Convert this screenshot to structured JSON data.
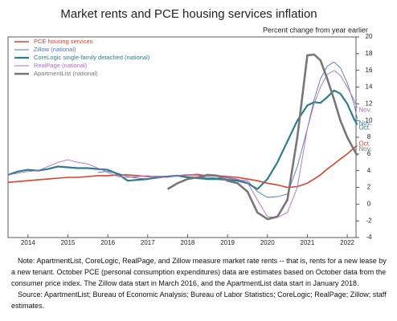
{
  "chart_data": {
    "type": "line",
    "title": "Market rents and PCE housing services inflation",
    "subtitle": "Percent change from year earlier",
    "x": [
      2014.0,
      2014.25,
      2014.5,
      2014.75,
      2015.0,
      2015.25,
      2015.5,
      2015.75,
      2016.0,
      2016.25,
      2016.5,
      2016.75,
      2017.0,
      2017.25,
      2017.5,
      2017.75,
      2018.0,
      2018.25,
      2018.5,
      2018.75,
      2019.0,
      2019.25,
      2019.5,
      2019.75,
      2020.0,
      2020.25,
      2020.5,
      2020.75,
      2021.0,
      2021.25,
      2021.5,
      2021.67,
      2021.83,
      2022.0,
      2022.17,
      2022.33,
      2022.5,
      2022.67,
      2022.75
    ],
    "series": [
      {
        "name": "PCE housing services",
        "color": "#d9442a",
        "end_label": "Oct.",
        "values": [
          2.6,
          2.7,
          2.8,
          2.9,
          3.0,
          3.1,
          3.2,
          3.2,
          3.3,
          3.4,
          3.4,
          3.5,
          3.5,
          3.4,
          3.3,
          3.3,
          3.3,
          3.4,
          3.5,
          3.5,
          3.4,
          3.4,
          3.3,
          3.2,
          3.0,
          2.8,
          2.5,
          2.3,
          2.0,
          2.1,
          2.5,
          3.0,
          3.5,
          4.2,
          4.8,
          5.4,
          6.0,
          6.7,
          7.0
        ]
      },
      {
        "name": "Zillow (national)",
        "color": "#4a7bb7",
        "end_label": "Nov.",
        "values": [
          null,
          null,
          null,
          null,
          null,
          null,
          null,
          null,
          null,
          3.8,
          3.9,
          3.7,
          3.3,
          3.1,
          3.0,
          3.1,
          3.3,
          3.4,
          3.3,
          3.2,
          3.2,
          3.1,
          3.1,
          2.9,
          2.8,
          1.5,
          0.8,
          0.9,
          1.2,
          4.5,
          9,
          12.5,
          15,
          16.5,
          17,
          16.3,
          14.5,
          12,
          10.2
        ]
      },
      {
        "name": "CoreLogic single-family detached (national)",
        "color": "#2e7d8c",
        "end_label": "Oct.",
        "values": [
          3.5,
          3.9,
          4.1,
          4.0,
          4.2,
          4.5,
          4.4,
          4.3,
          4.3,
          4.2,
          4.1,
          3.6,
          2.8,
          2.9,
          3.0,
          3.2,
          3.3,
          3.4,
          3.2,
          3.1,
          3.0,
          3.0,
          2.9,
          2.8,
          2.5,
          1.8,
          3.0,
          5.0,
          7.5,
          10,
          11.8,
          12.2,
          12.1,
          12.8,
          13.6,
          13.2,
          12,
          10.2,
          9.5
        ]
      },
      {
        "name": "RealPage (national)",
        "color": "#b46ac9",
        "end_label": "Nov.",
        "values": [
          3.5,
          3.7,
          3.9,
          4.0,
          4.5,
          5.0,
          5.3,
          5.0,
          4.8,
          4.3,
          3.8,
          3.3,
          3.2,
          3.3,
          3.4,
          3.2,
          3.2,
          3.4,
          3.5,
          3.6,
          3.4,
          3.3,
          3.2,
          3.0,
          2.6,
          0.5,
          -1.5,
          -1.6,
          -1.0,
          2,
          9,
          12,
          14,
          15.5,
          16,
          15.4,
          14,
          12.5,
          11.5
        ]
      },
      {
        "name": "ApartmentList (national)",
        "color": "#777777",
        "end_label": "Nov.",
        "values": [
          null,
          null,
          null,
          null,
          null,
          null,
          null,
          null,
          null,
          null,
          null,
          null,
          null,
          null,
          null,
          null,
          1.8,
          2.5,
          3.0,
          3.2,
          3.5,
          3.4,
          2.8,
          2.5,
          1.5,
          -1.0,
          -1.8,
          -1.5,
          0.5,
          8,
          17.8,
          17.9,
          17.2,
          15,
          12.5,
          10,
          8,
          6.5,
          5.8
        ]
      }
    ],
    "xlim": [
      2014.0,
      2022.72
    ],
    "xticks": [
      {
        "value": 2014.5,
        "label": "2014"
      },
      {
        "value": 2015.5,
        "label": "2015"
      },
      {
        "value": 2016.5,
        "label": "2016"
      },
      {
        "value": 2017.5,
        "label": "2017"
      },
      {
        "value": 2018.5,
        "label": "2018"
      },
      {
        "value": 2019.5,
        "label": "2019"
      },
      {
        "value": 2020.5,
        "label": "2020"
      },
      {
        "value": 2021.5,
        "label": "2021"
      },
      {
        "value": 2022.5,
        "label": "2022"
      }
    ],
    "ylim": [
      -4,
      20
    ],
    "yticks": [
      -4,
      -2,
      0,
      2,
      4,
      6,
      8,
      10,
      12,
      14,
      16,
      18,
      20
    ],
    "grid": false,
    "legend": "top-left",
    "note": "Note: ApartmentList, CoreLogic, RealPage, and Zillow measure market rate rents -- that is, rents for a new lease by a new tenant. October PCE (personal consumption expenditures) data are estimates based on October data from the consumer price index. The Zillow data start in March 2016, and the ApartmentList data start in January 2018.",
    "source": "Source: ApartmentList; Bureau of Economic Analysis; Bureau of Labor Statistics; CoreLogic; RealPage; Zillow; staff estimates."
  }
}
